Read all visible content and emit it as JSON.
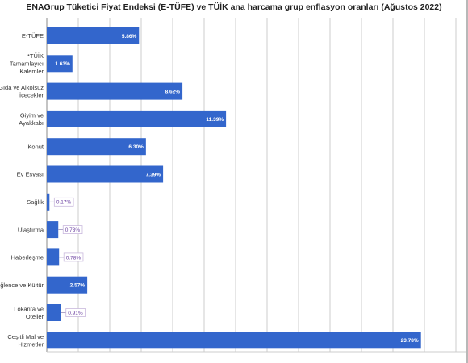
{
  "chart_data": {
    "type": "bar",
    "orientation": "horizontal",
    "title": "ENAGrup Tüketici Fiyat Endeksi (E-TÜFE) ve TÜİK ana harcama grup enflasyon oranları (Ağustos 2022)",
    "categories": [
      "E-TÜFE",
      "*TÜİK Tamamlayıcı Kalemler",
      "Gıda ve Alkolsüz İçecekler",
      "Giyim ve Ayakkabı",
      "Konut",
      "Ev Eşyası",
      "Sağlık",
      "Ulaştırma",
      "Haberleşme",
      "Eğlence ve Kültür",
      "Lokanta ve Oteller",
      "Çeşitli Mal ve Hizmetler"
    ],
    "category_lines": [
      [
        "E-TÜFE"
      ],
      [
        "*TÜİK",
        "Tamamlayıcı",
        "Kalemler"
      ],
      [
        "Gıda ve Alkolsüz",
        "İçecekler"
      ],
      [
        "Giyim ve",
        "Ayakkabı"
      ],
      [
        "Konut"
      ],
      [
        "Ev Eşyası"
      ],
      [
        "Sağlık"
      ],
      [
        "Ulaştırma"
      ],
      [
        "Haberleşme"
      ],
      [
        "Eğlence ve Kültür"
      ],
      [
        "Lokanta ve",
        "Oteller"
      ],
      [
        "Çeşitli Mal ve",
        "Hizmetler"
      ]
    ],
    "values": [
      5.86,
      1.63,
      8.62,
      11.39,
      6.3,
      7.39,
      0.17,
      0.73,
      0.78,
      2.57,
      0.91,
      23.78
    ],
    "value_labels": [
      "5.86%",
      "1.63%",
      "8.62%",
      "11.39%",
      "6.30%",
      "7.39%",
      "0.17%",
      "0.73%",
      "0.78%",
      "2.57%",
      "0.91%",
      "23.78%"
    ],
    "xlim": [
      0,
      26
    ],
    "grid": true,
    "legend": "none",
    "bar_color": "#3366cc",
    "grid_color": "#cccccc",
    "outside_label_color": "#6a3fa0"
  }
}
